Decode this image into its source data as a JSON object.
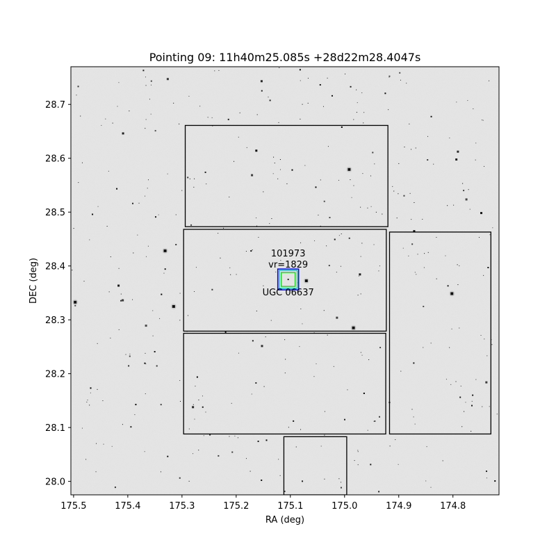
{
  "chart_data": {
    "type": "scatter",
    "title": "Pointing 09: 11h40m25.085s +28d22m28.4047s",
    "xlabel": "RA (deg)",
    "ylabel": "DEC (deg)",
    "x_axis_inverted": true,
    "xlim": [
      175.505,
      174.715
    ],
    "ylim": [
      27.975,
      28.77
    ],
    "xticks": [
      175.5,
      175.4,
      175.3,
      175.2,
      175.1,
      175.0,
      174.9,
      174.8
    ],
    "xtick_labels": [
      "175.5",
      "175.4",
      "175.3",
      "175.2",
      "175.1",
      "175.0",
      "174.9",
      "174.8"
    ],
    "yticks": [
      28.0,
      28.1,
      28.2,
      28.3,
      28.4,
      28.5,
      28.6,
      28.7
    ],
    "ytick_labels": [
      "28.0",
      "28.1",
      "28.2",
      "28.3",
      "28.4",
      "28.5",
      "28.6",
      "28.7"
    ],
    "background": "greyscale sky survey image",
    "footprints": [
      {
        "ra_min": 174.92,
        "ra_max": 175.294,
        "dec_min": 28.473,
        "dec_max": 28.661
      },
      {
        "ra_min": 174.923,
        "ra_max": 175.297,
        "dec_min": 28.279,
        "dec_max": 28.468
      },
      {
        "ra_min": 174.924,
        "ra_max": 175.297,
        "dec_min": 28.088,
        "dec_max": 28.275
      },
      {
        "ra_min": 174.73,
        "ra_max": 174.917,
        "dec_min": 28.088,
        "dec_max": 28.463
      },
      {
        "ra_min": 174.996,
        "ra_max": 175.112,
        "dec_min": 27.975,
        "dec_max": 28.083
      }
    ],
    "target": {
      "id_label": "101973",
      "velocity_label": "vr=1829",
      "name_label": "UGC 06637",
      "ra": 175.104,
      "dec": 28.375,
      "marker_colors": [
        "#0000ff",
        "#00ced1",
        "#32cd32"
      ]
    },
    "colors": {
      "frame": "#000000",
      "footprint": "#000000",
      "sky": "#e3e3e3"
    }
  }
}
